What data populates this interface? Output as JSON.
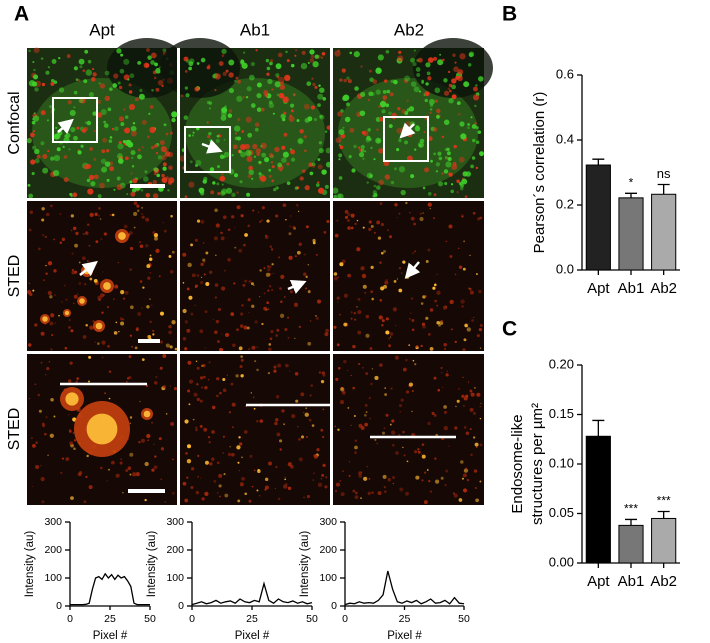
{
  "panel_labels": [
    "A",
    "B",
    "C"
  ],
  "column_labels": [
    "Apt",
    "Ab1",
    "Ab2"
  ],
  "row_labels": [
    "Confocal",
    "STED",
    "STED"
  ],
  "chart_data": [
    {
      "type": "bar",
      "ylabel": "Pearson´s correlation (r)",
      "categories": [
        "Apt",
        "Ab1",
        "Ab2"
      ],
      "values": [
        0.323,
        0.222,
        0.233
      ],
      "errors": [
        0.018,
        0.014,
        0.03
      ],
      "colors": [
        "#222222",
        "#777777",
        "#aaaaaa"
      ],
      "ylim": [
        0,
        0.6
      ],
      "yticks": [
        {
          "value": 0,
          "label": "0.0"
        },
        0.2,
        0.4,
        0.6
      ],
      "annotations": [
        {
          "category": "Ab1",
          "text": "*"
        },
        {
          "category": "Ab2",
          "text": "ns"
        }
      ]
    },
    {
      "type": "bar",
      "ylabel": [
        "Endosome-like",
        "structures per µm²"
      ],
      "categories": [
        "Apt",
        "Ab1",
        "Ab2"
      ],
      "values": [
        0.128,
        0.038,
        0.045
      ],
      "errors": [
        0.016,
        0.006,
        0.007
      ],
      "colors": [
        "#000000",
        "#777777",
        "#aaaaaa"
      ],
      "ylim": [
        0,
        0.2
      ],
      "yticks": [
        {
          "value": 0,
          "label": "0.00"
        },
        {
          "value": 0.05,
          "label": "0.05"
        },
        {
          "value": 0.1,
          "label": "0.10"
        },
        {
          "value": 0.15,
          "label": "0.15"
        },
        {
          "value": 0.2,
          "label": "0.20"
        }
      ],
      "annotations": [
        {
          "category": "Ab1",
          "text": "***"
        },
        {
          "category": "Ab2",
          "text": "***"
        }
      ]
    },
    {
      "type": "line",
      "xlabel": "Pixel #",
      "ylabel": "Intensity (au)",
      "color": "#000000",
      "x": [
        0,
        2,
        4,
        6,
        8,
        10,
        12,
        14,
        16,
        18,
        20,
        22,
        24,
        26,
        28,
        30,
        32,
        34,
        36,
        38,
        40,
        42,
        44,
        46,
        48,
        50
      ],
      "values": [
        5,
        5,
        5,
        5,
        5,
        6,
        10,
        60,
        100,
        105,
        95,
        115,
        100,
        112,
        95,
        110,
        100,
        105,
        90,
        70,
        10,
        5,
        5,
        5,
        5,
        5
      ],
      "xlim": [
        0,
        50
      ],
      "xticks": [
        0,
        25,
        50
      ],
      "ylim": [
        0,
        300
      ],
      "yticks": [
        0,
        100,
        200,
        300
      ]
    },
    {
      "type": "line",
      "xlabel": "Pixel #",
      "ylabel": "Intensity (au)",
      "color": "#000000",
      "x": [
        0,
        2,
        4,
        6,
        8,
        10,
        12,
        14,
        16,
        18,
        20,
        22,
        24,
        26,
        28,
        30,
        32,
        34,
        36,
        38,
        40,
        42,
        44,
        46,
        48,
        50
      ],
      "values": [
        5,
        10,
        15,
        8,
        12,
        20,
        10,
        15,
        18,
        10,
        25,
        15,
        12,
        20,
        15,
        80,
        20,
        10,
        25,
        15,
        12,
        18,
        10,
        15,
        8,
        12
      ],
      "xlim": [
        0,
        50
      ],
      "xticks": [
        0,
        25,
        50
      ],
      "ylim": [
        0,
        300
      ],
      "yticks": [
        0,
        100,
        200,
        300
      ]
    },
    {
      "type": "line",
      "xlabel": "Pixel #",
      "ylabel": "Intensity (au)",
      "color": "#000000",
      "x": [
        0,
        2,
        4,
        6,
        8,
        10,
        12,
        14,
        16,
        18,
        20,
        22,
        24,
        26,
        28,
        30,
        32,
        34,
        36,
        38,
        40,
        42,
        44,
        46,
        48,
        50
      ],
      "values": [
        5,
        10,
        8,
        15,
        10,
        12,
        10,
        20,
        40,
        125,
        60,
        15,
        10,
        18,
        12,
        20,
        8,
        15,
        25,
        10,
        12,
        20,
        8,
        30,
        10,
        8
      ],
      "xlim": [
        0,
        50
      ],
      "xticks": [
        0,
        25,
        50
      ],
      "ylim": [
        0,
        300
      ],
      "yticks": [
        0,
        100,
        200,
        300
      ]
    }
  ]
}
